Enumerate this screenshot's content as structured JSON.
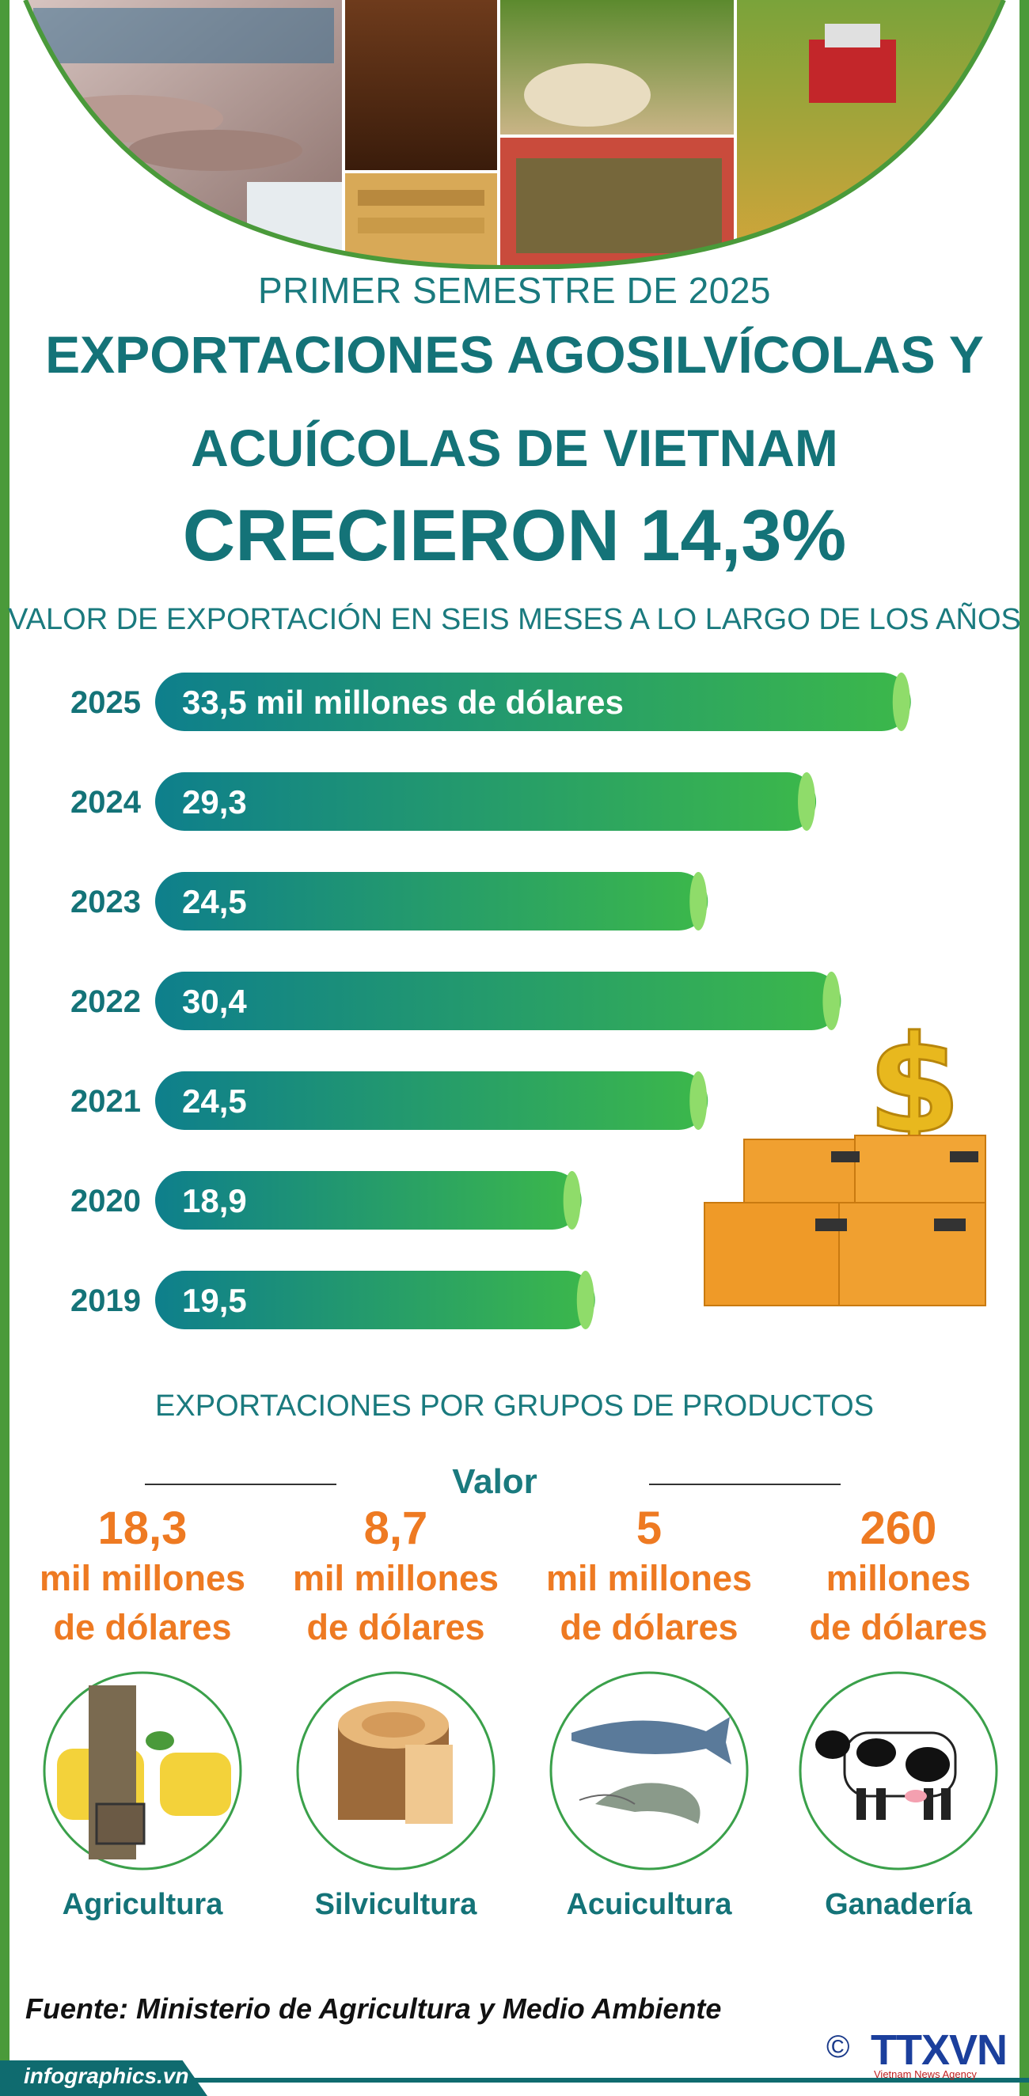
{
  "header": {
    "subtitle": "PRIMER SEMESTRE DE 2025",
    "title_line1": "EXPORTACIONES AGOSILVÍCOLAS Y",
    "title_line2": "ACUÍCOLAS DE VIETNAM",
    "headline": "CRECIERON 14,3%"
  },
  "chart_data": {
    "type": "bar",
    "orientation": "horizontal",
    "title": "VALOR DE EXPORTACIÓN EN SEIS MESES A LO LARGO DE LOS AÑOS",
    "categories": [
      "2025",
      "2024",
      "2023",
      "2022",
      "2021",
      "2020",
      "2019"
    ],
    "values": [
      33.5,
      29.3,
      24.5,
      30.4,
      24.5,
      18.9,
      19.5
    ],
    "value_labels": [
      "33,5 mil millones de dólares",
      "29,3",
      "24,5",
      "30,4",
      "24,5",
      "18,9",
      "19,5"
    ],
    "xlim": [
      0,
      36
    ],
    "grid": false,
    "colors": {
      "bar_start": "#0e7f8c",
      "bar_end": "#3cb84a",
      "cap": "#8fdc6a"
    }
  },
  "groups": {
    "title": "EXPORTACIONES POR GRUPOS DE PRODUCTOS",
    "value_header": "Valor",
    "items": [
      {
        "value": "18,3",
        "unit_line1": "mil millones",
        "unit_line2": "de dólares",
        "name": "Agricultura",
        "icon": "rubber-tapping-icon"
      },
      {
        "value": "8,7",
        "unit_line1": "mil millones",
        "unit_line2": "de dólares",
        "name": "Silvicultura",
        "icon": "wood-log-icon"
      },
      {
        "value": "5",
        "unit_line1": "mil millones",
        "unit_line2": "de dólares",
        "name": "Acuicultura",
        "icon": "fish-shrimp-icon"
      },
      {
        "value": "260",
        "unit_line1": "millones",
        "unit_line2": "de dólares",
        "name": "Ganadería",
        "icon": "cow-icon"
      }
    ]
  },
  "footer": {
    "source": "Fuente: Ministerio de Agricultura y Medio Ambiente",
    "site": "infographics.vn",
    "copyright": "©",
    "agency": "TTXVN",
    "agency_sub": "Vietnam News Agency"
  },
  "colors": {
    "teal": "#147378",
    "orange": "#ee7a22",
    "frame_green": "#4a9a3a"
  }
}
